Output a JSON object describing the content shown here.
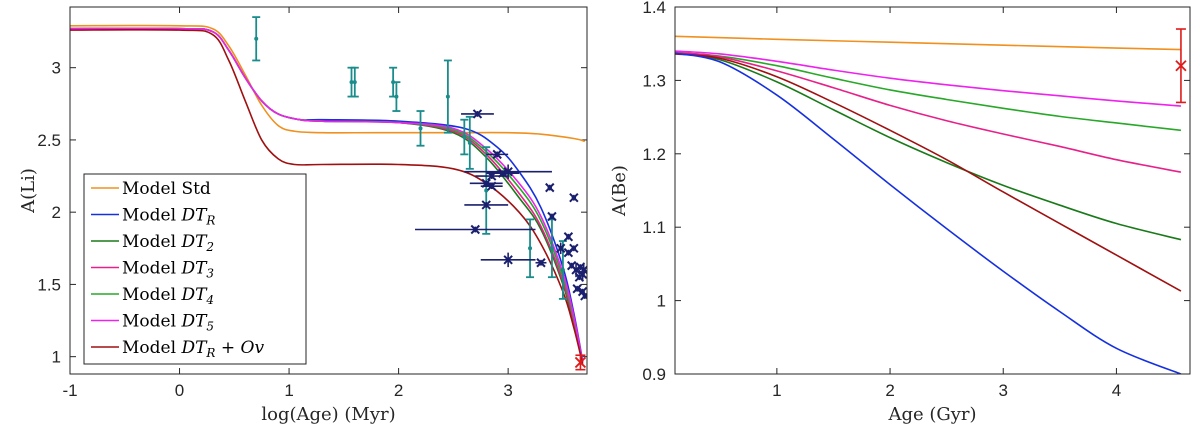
{
  "chart_data": [
    {
      "type": "line",
      "xlabel": "log(Age) (Myr)",
      "ylabel": "A(Li)",
      "xlim": [
        -1,
        3.72
      ],
      "ylim": [
        0.88,
        3.42
      ],
      "xticks": [
        "-1",
        "0",
        "1",
        "2",
        "3"
      ],
      "yticks": [
        "1",
        "1.5",
        "2",
        "2.5",
        "3"
      ],
      "legend_position": "bottom-left",
      "grid": false,
      "series": [
        {
          "name": "Model Std",
          "color": "#f0901e",
          "x": [
            -1,
            0,
            0.3,
            0.45,
            0.6,
            0.75,
            0.9,
            1.05,
            1.3,
            1.8,
            2.5,
            3.0,
            3.3,
            3.6,
            3.7
          ],
          "y": [
            3.29,
            3.29,
            3.27,
            3.15,
            2.95,
            2.74,
            2.6,
            2.56,
            2.55,
            2.55,
            2.55,
            2.55,
            2.54,
            2.51,
            2.49
          ]
        },
        {
          "name": "Model DT_R",
          "color": "#1530e0",
          "x": [
            -1,
            0,
            0.3,
            0.45,
            0.6,
            0.75,
            0.9,
            1.1,
            1.3,
            2.0,
            2.6,
            2.9,
            3.1,
            3.3,
            3.5,
            3.6,
            3.68
          ],
          "y": [
            3.27,
            3.27,
            3.25,
            3.12,
            2.93,
            2.77,
            2.68,
            2.64,
            2.64,
            2.63,
            2.58,
            2.45,
            2.28,
            2.03,
            1.62,
            1.3,
            0.97
          ]
        },
        {
          "name": "Model DT_2",
          "color": "#1a7a1a",
          "x": [
            -1,
            0,
            0.3,
            0.45,
            0.6,
            0.75,
            0.9,
            1.1,
            1.3,
            2.0,
            2.5,
            2.8,
            3.1,
            3.3,
            3.5,
            3.6,
            3.68
          ],
          "y": [
            3.27,
            3.27,
            3.25,
            3.12,
            2.93,
            2.77,
            2.68,
            2.64,
            2.63,
            2.62,
            2.55,
            2.38,
            2.1,
            1.88,
            1.5,
            1.22,
            0.96
          ]
        },
        {
          "name": "Model DT_3",
          "color": "#e8208a",
          "x": [
            -1,
            0,
            0.3,
            0.45,
            0.6,
            0.75,
            0.9,
            1.1,
            1.3,
            2.0,
            2.5,
            2.8,
            3.1,
            3.3,
            3.5,
            3.6,
            3.68
          ],
          "y": [
            3.27,
            3.27,
            3.25,
            3.12,
            2.93,
            2.77,
            2.68,
            2.64,
            2.63,
            2.62,
            2.56,
            2.4,
            2.13,
            1.9,
            1.52,
            1.24,
            0.96
          ]
        },
        {
          "name": "Model DT_4",
          "color": "#28a828",
          "x": [
            -1,
            0,
            0.3,
            0.45,
            0.6,
            0.75,
            0.9,
            1.1,
            1.3,
            2.0,
            2.5,
            2.8,
            3.1,
            3.3,
            3.5,
            3.6,
            3.68
          ],
          "y": [
            3.27,
            3.27,
            3.25,
            3.12,
            2.93,
            2.77,
            2.68,
            2.64,
            2.63,
            2.62,
            2.57,
            2.42,
            2.17,
            1.94,
            1.55,
            1.26,
            0.96
          ]
        },
        {
          "name": "Model DT_5",
          "color": "#ee22ee",
          "x": [
            -1,
            0,
            0.3,
            0.45,
            0.6,
            0.75,
            0.9,
            1.1,
            1.3,
            2.0,
            2.5,
            2.8,
            3.1,
            3.3,
            3.5,
            3.6,
            3.68
          ],
          "y": [
            3.27,
            3.27,
            3.25,
            3.12,
            2.93,
            2.77,
            2.68,
            2.64,
            2.63,
            2.62,
            2.58,
            2.44,
            2.2,
            1.97,
            1.58,
            1.28,
            0.96
          ]
        },
        {
          "name": "Model DT_R + Ov",
          "color": "#a01010",
          "x": [
            -1,
            0,
            0.3,
            0.45,
            0.6,
            0.75,
            0.9,
            1.05,
            1.3,
            2.0,
            2.5,
            2.8,
            3.1,
            3.3,
            3.5,
            3.6,
            3.68
          ],
          "y": [
            3.26,
            3.26,
            3.23,
            3.05,
            2.77,
            2.5,
            2.37,
            2.33,
            2.33,
            2.33,
            2.3,
            2.2,
            2.0,
            1.78,
            1.45,
            1.2,
            0.95
          ]
        }
      ],
      "cluster_points": {
        "color": "#1a8c8c",
        "x": [
          0.7,
          1.57,
          1.6,
          1.95,
          1.98,
          2.2,
          2.45,
          2.6,
          2.65,
          2.8,
          3.2,
          3.4,
          3.5
        ],
        "y": [
          3.2,
          2.9,
          2.9,
          2.9,
          2.8,
          2.58,
          2.8,
          2.52,
          2.48,
          2.15,
          1.75,
          1.75,
          1.6
        ],
        "err": [
          0.15,
          0.1,
          0.1,
          0.1,
          0.1,
          0.12,
          0.25,
          0.12,
          0.18,
          0.3,
          0.2,
          0.2,
          0.2
        ]
      },
      "star_points": {
        "color": "#1a1f6e",
        "x": [
          2.72,
          2.85,
          2.9,
          2.8,
          2.95,
          3.0,
          2.85,
          2.8,
          2.7,
          3.0,
          3.3,
          3.38,
          3.4,
          3.48,
          3.55,
          3.6,
          3.62,
          3.65,
          3.66,
          3.68,
          3.7,
          3.63,
          3.58,
          3.6,
          3.55,
          3.68,
          3.69
        ],
        "y": [
          2.68,
          2.25,
          2.4,
          2.2,
          2.27,
          2.28,
          2.18,
          2.05,
          1.88,
          1.67,
          1.65,
          2.17,
          1.97,
          1.75,
          1.83,
          2.1,
          1.6,
          1.55,
          1.62,
          1.57,
          1.42,
          1.47,
          1.63,
          1.75,
          1.72,
          1.45,
          1.6
        ],
        "xerr": [
          0.15,
          0.15,
          0.1,
          0.15,
          0.15,
          0.4,
          0.1,
          0.2,
          0.55,
          0.25,
          0.05,
          0.02,
          0.02,
          0.02,
          0.02,
          0.02,
          0.02,
          0.02,
          0.02,
          0.02,
          0.02,
          0.02,
          0.02,
          0.02,
          0.02,
          0.02,
          0.02
        ],
        "yerr": [
          0.02,
          0.02,
          0.02,
          0.02,
          0.02,
          0.05,
          0.02,
          0.02,
          0.02,
          0.05,
          0.02,
          0.02,
          0.02,
          0.04,
          0.02,
          0.02,
          0.05,
          0.02,
          0.02,
          0.05,
          0.02,
          0.02,
          0.02,
          0.02,
          0.02,
          0.02,
          0.05
        ]
      },
      "sun_point": {
        "color": "#e01a1a",
        "x": 3.66,
        "y": 0.96,
        "yerr": 0.05
      }
    },
    {
      "type": "line",
      "xlabel": "Age (Gyr)",
      "ylabel": "A(Be)",
      "xlim": [
        0.1,
        4.65
      ],
      "ylim": [
        0.9,
        1.4
      ],
      "xticks": [
        "1",
        "2",
        "3",
        "4"
      ],
      "yticks": [
        "0.9",
        "1",
        "1.1",
        "1.2",
        "1.3",
        "1.4"
      ],
      "grid": false,
      "series": [
        {
          "name": "Model Std",
          "color": "#f0901e",
          "x": [
            0.1,
            1,
            2,
            3,
            4,
            4.57
          ],
          "y": [
            1.36,
            1.356,
            1.352,
            1.348,
            1.344,
            1.342
          ]
        },
        {
          "name": "Model DT_5",
          "color": "#ee22ee",
          "x": [
            0.1,
            0.5,
            1,
            1.5,
            2,
            2.5,
            3,
            3.5,
            4,
            4.57
          ],
          "y": [
            1.34,
            1.336,
            1.326,
            1.314,
            1.303,
            1.294,
            1.286,
            1.279,
            1.272,
            1.265
          ]
        },
        {
          "name": "Model DT_4",
          "color": "#28a828",
          "x": [
            0.1,
            0.5,
            1,
            1.5,
            2,
            2.5,
            3,
            3.5,
            4,
            4.57
          ],
          "y": [
            1.338,
            1.333,
            1.32,
            1.303,
            1.287,
            1.274,
            1.262,
            1.251,
            1.242,
            1.232
          ]
        },
        {
          "name": "Model DT_3",
          "color": "#e8208a",
          "x": [
            0.1,
            0.5,
            1,
            1.5,
            2,
            2.5,
            3,
            3.5,
            4,
            4.57
          ],
          "y": [
            1.338,
            1.332,
            1.313,
            1.29,
            1.266,
            1.245,
            1.227,
            1.21,
            1.192,
            1.175
          ]
        },
        {
          "name": "Model DT_2",
          "color": "#1a7a1a",
          "x": [
            0.1,
            0.5,
            1,
            1.5,
            2,
            2.5,
            3,
            3.5,
            4,
            4.57
          ],
          "y": [
            1.337,
            1.328,
            1.298,
            1.26,
            1.222,
            1.188,
            1.157,
            1.13,
            1.105,
            1.083
          ]
        },
        {
          "name": "Model DT_R + Ov",
          "color": "#a01010",
          "x": [
            0.1,
            0.5,
            1,
            1.5,
            2,
            2.5,
            3,
            3.5,
            4,
            4.57
          ],
          "y": [
            1.336,
            1.33,
            1.305,
            1.27,
            1.232,
            1.192,
            1.148,
            1.105,
            1.062,
            1.013
          ]
        },
        {
          "name": "Model DT_R",
          "color": "#1530e0",
          "x": [
            0.1,
            0.5,
            1,
            1.5,
            2,
            2.5,
            3,
            3.5,
            4,
            4.57
          ],
          "y": [
            1.337,
            1.325,
            1.28,
            1.22,
            1.158,
            1.098,
            1.04,
            0.985,
            0.935,
            0.9
          ]
        }
      ],
      "sun_point": {
        "color": "#e01a1a",
        "x": 4.57,
        "y": 1.32,
        "yerr": 0.05
      }
    }
  ],
  "legend": [
    {
      "prefix": "Model ",
      "main": "Std",
      "sub": "",
      "suffix": "",
      "color": "#f0901e"
    },
    {
      "prefix": "Model ",
      "main": "DT",
      "sub": "R",
      "suffix": "",
      "color": "#1530e0"
    },
    {
      "prefix": "Model ",
      "main": "DT",
      "sub": "2",
      "suffix": "",
      "color": "#1a7a1a"
    },
    {
      "prefix": "Model ",
      "main": "DT",
      "sub": "3",
      "suffix": "",
      "color": "#e8208a"
    },
    {
      "prefix": "Model ",
      "main": "DT",
      "sub": "4",
      "suffix": "",
      "color": "#28a828"
    },
    {
      "prefix": "Model ",
      "main": "DT",
      "sub": "5",
      "suffix": "",
      "color": "#ee22ee"
    },
    {
      "prefix": "Model ",
      "main": "DT",
      "sub": "R",
      "suffix": " + Ov",
      "color": "#a01010"
    }
  ]
}
